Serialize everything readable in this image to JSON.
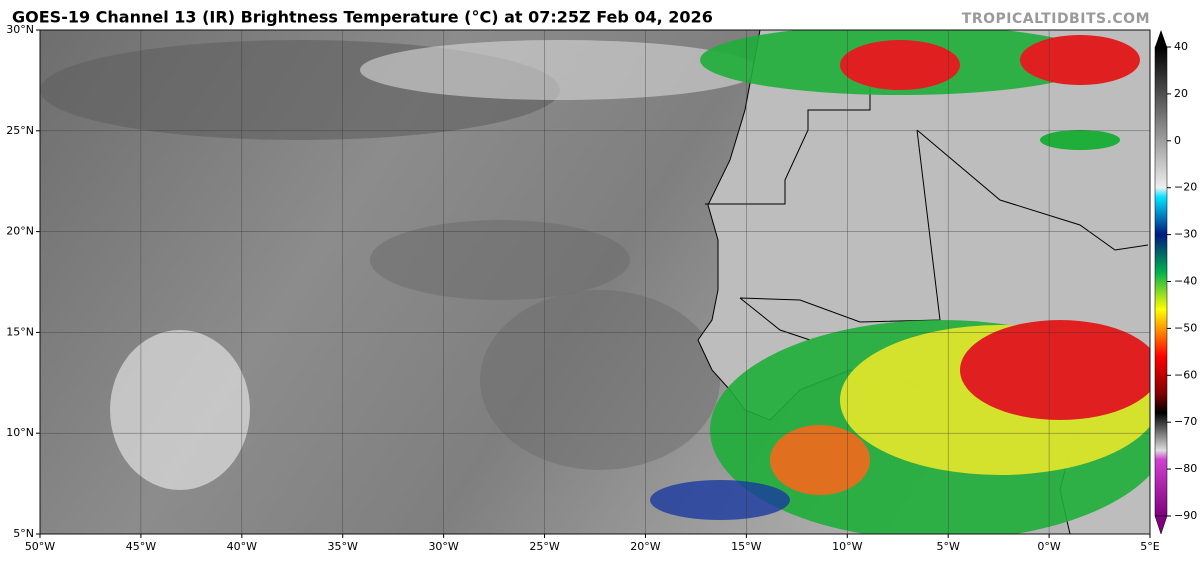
{
  "header": {
    "title": "GOES-19 Channel 13 (IR) Brightness Temperature (°C) at 07:25Z Feb 04, 2026",
    "credit": "TROPICALTIDBITS.COM"
  },
  "map": {
    "lonlim": [
      -50,
      5
    ],
    "latlim": [
      5,
      30
    ],
    "lat_labels": [
      {
        "value": 30,
        "label": "30°N"
      },
      {
        "value": 25,
        "label": "25°N"
      },
      {
        "value": 20,
        "label": "20°N"
      },
      {
        "value": 15,
        "label": "15°N"
      },
      {
        "value": 10,
        "label": "10°N"
      },
      {
        "value": 5,
        "label": "5°N"
      }
    ],
    "lon_labels": [
      {
        "value": -50,
        "label": "50°W"
      },
      {
        "value": -45,
        "label": "45°W"
      },
      {
        "value": -40,
        "label": "40°W"
      },
      {
        "value": -35,
        "label": "35°W"
      },
      {
        "value": -30,
        "label": "30°W"
      },
      {
        "value": -25,
        "label": "25°W"
      },
      {
        "value": -20,
        "label": "20°W"
      },
      {
        "value": -15,
        "label": "15°W"
      },
      {
        "value": -10,
        "label": "10°W"
      },
      {
        "value": -5,
        "label": "5°W"
      },
      {
        "value": 0,
        "label": "0°W"
      },
      {
        "value": 5,
        "label": "5°E"
      }
    ]
  },
  "colorbar": {
    "ticks": [
      40,
      20,
      0,
      {
        "value": -20,
        "label": "−20"
      },
      {
        "value": -30,
        "label": "−30"
      },
      {
        "value": -40,
        "label": "−40"
      },
      {
        "value": -50,
        "label": "−50"
      },
      {
        "value": -60,
        "label": "−60"
      },
      {
        "value": -70,
        "label": "−70"
      },
      {
        "value": -80,
        "label": "−80"
      },
      {
        "value": -90,
        "label": "−90"
      }
    ]
  }
}
